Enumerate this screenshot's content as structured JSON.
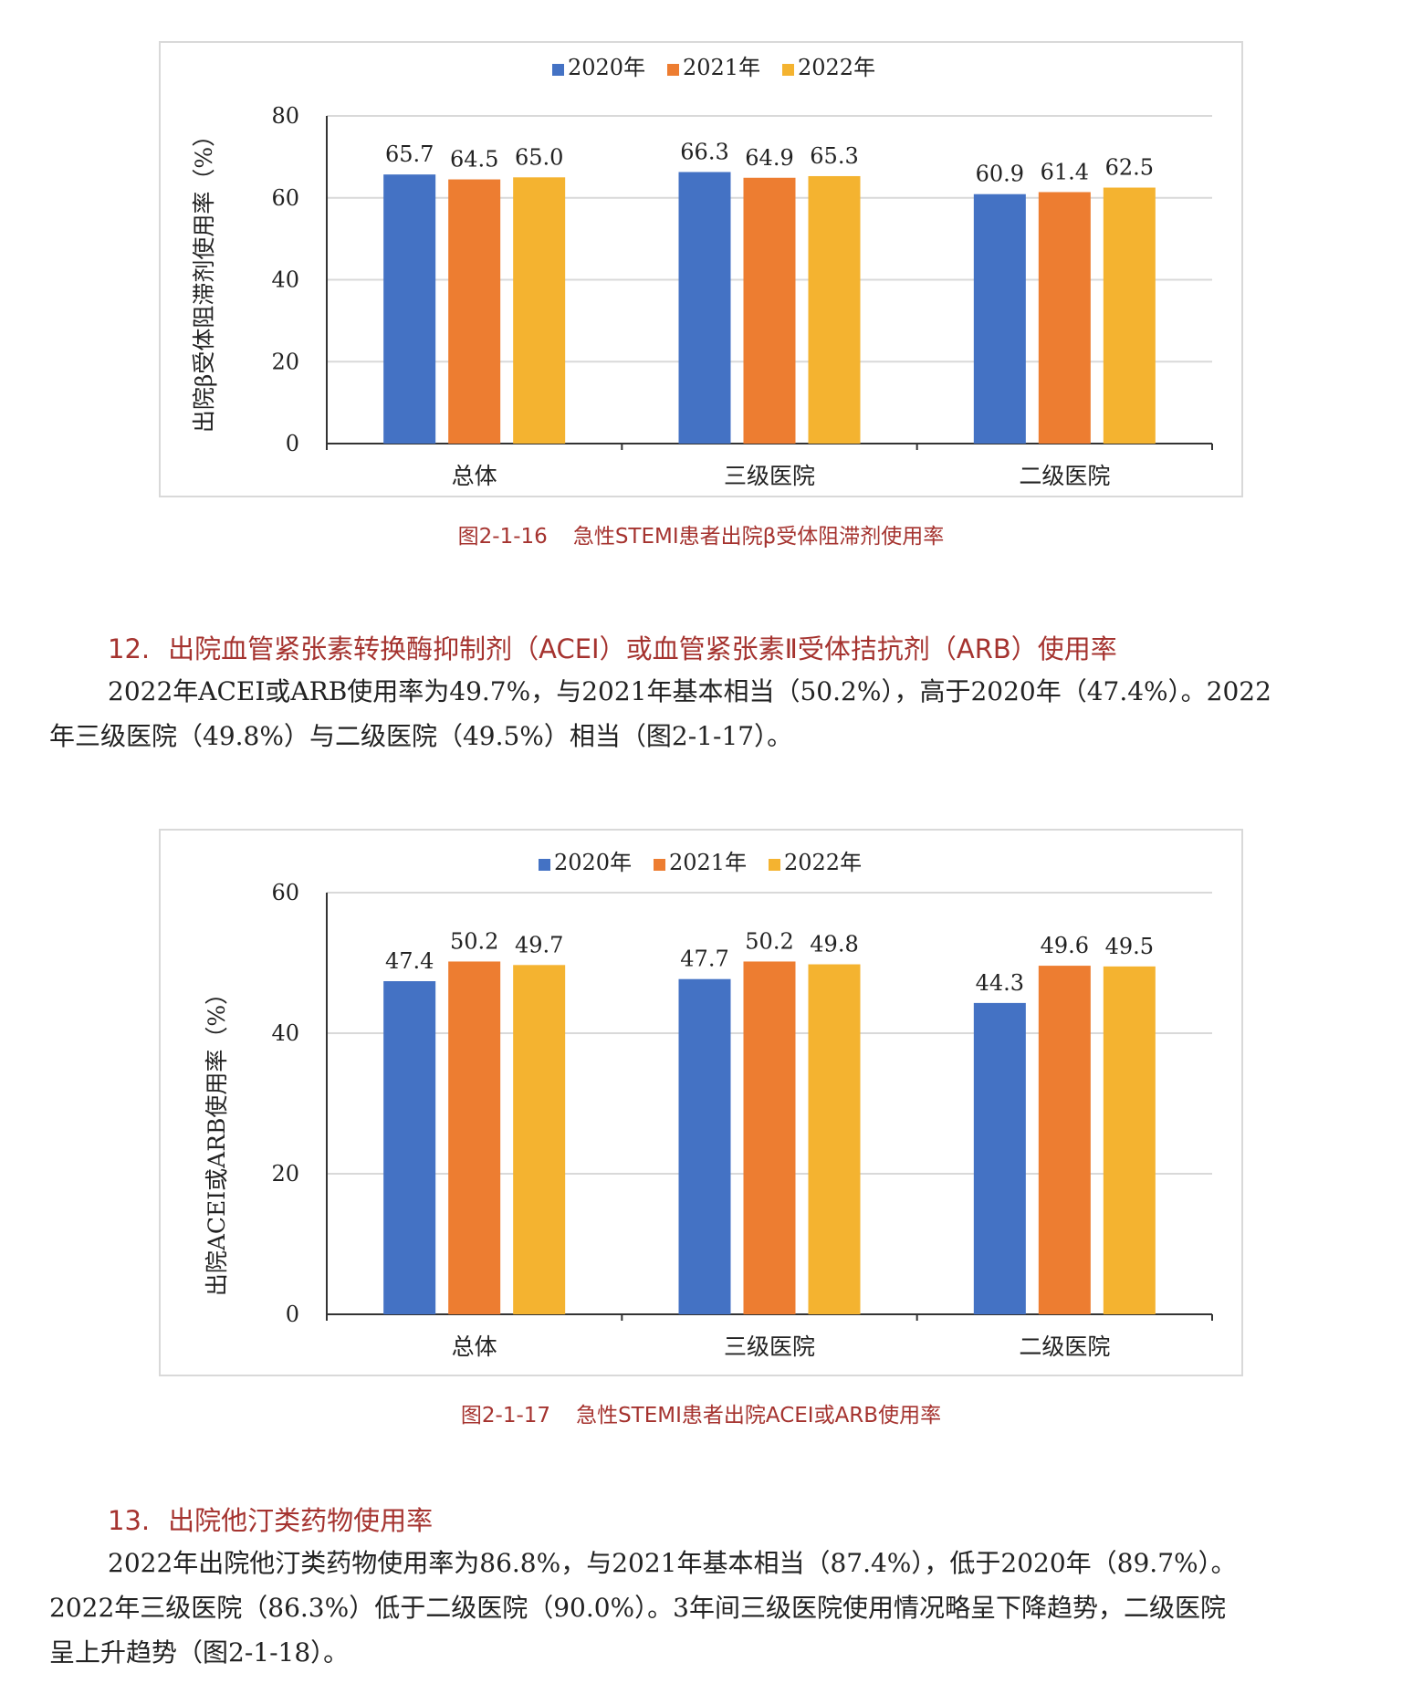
{
  "chart_data": [
    {
      "type": "bar",
      "categories": [
        "总体",
        "三级医院",
        "二级医院"
      ],
      "series": [
        {
          "name": "2020年",
          "color": "#4472c4",
          "values": [
            65.7,
            66.3,
            60.9
          ]
        },
        {
          "name": "2021年",
          "color": "#ed7d31",
          "values": [
            64.5,
            64.9,
            61.4
          ]
        },
        {
          "name": "2022年",
          "color": "#f4b330",
          "values": [
            65.0,
            65.3,
            62.5
          ]
        }
      ],
      "ylabel": "出院β受体阻滞剂使用率（%）",
      "ylim": [
        0,
        80
      ],
      "yticks": [
        0,
        20,
        40,
        60,
        80
      ],
      "grid": true,
      "legend": "top-center"
    },
    {
      "type": "bar",
      "categories": [
        "总体",
        "三级医院",
        "二级医院"
      ],
      "series": [
        {
          "name": "2020年",
          "color": "#4472c4",
          "values": [
            47.4,
            47.7,
            44.3
          ]
        },
        {
          "name": "2021年",
          "color": "#ed7d31",
          "values": [
            50.2,
            50.2,
            49.6
          ]
        },
        {
          "name": "2022年",
          "color": "#f4b330",
          "values": [
            49.7,
            49.8,
            49.5
          ]
        }
      ],
      "ylabel": "出院ACEI或ARB使用率（%）",
      "ylim": [
        0,
        60
      ],
      "yticks": [
        0,
        20,
        40,
        60
      ],
      "grid": true,
      "legend": "top-center"
    }
  ],
  "caption1": {
    "number": "图2-1-16",
    "text": "急性STEMI患者出院β受体阻滞剂使用率"
  },
  "section12": {
    "number": "12.",
    "title": "出院血管紧张素转换酶抑制剂（ACEI）或血管紧张素Ⅱ受体拮抗剂（ARB）使用率",
    "para_line1": "2022年ACEI或ARB使用率为49.7%，与2021年基本相当（50.2%），高于2020年（47.4%）。2022",
    "para_line2": "年三级医院（49.8%）与二级医院（49.5%）相当（图2-1-17）。"
  },
  "caption2": {
    "number": "图2-1-17",
    "text": "急性STEMI患者出院ACEI或ARB使用率"
  },
  "section13": {
    "number": "13.",
    "title": "出院他汀类药物使用率",
    "para_line1": "2022年出院他汀类药物使用率为86.8%，与2021年基本相当（87.4%），低于2020年（89.7%）。",
    "para_line2": "2022年三级医院（86.3%）低于二级医院（90.0%）。3年间三级医院使用情况略呈下降趋势，二级医院",
    "para_line3": "呈上升趋势（图2-1-18）。"
  }
}
